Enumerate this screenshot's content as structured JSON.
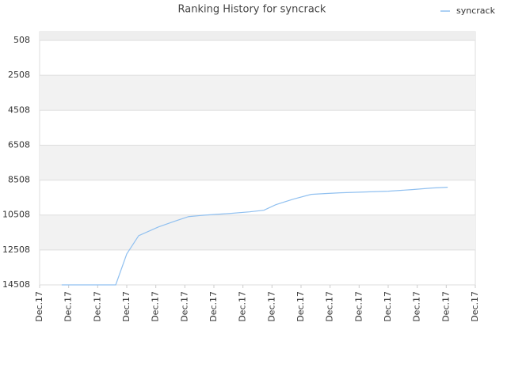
{
  "chart_data": {
    "type": "line",
    "title": "Ranking History for syncrack",
    "series": [
      {
        "name": "syncrack",
        "color": "#90c0f0",
        "x": [
          0.76,
          2.62,
          3.0,
          3.41,
          4.09,
          4.64,
          5.13,
          5.73,
          6.55,
          7.23,
          7.72,
          8.13,
          8.73,
          9.35,
          9.82,
          10.36,
          11.18,
          12.0,
          12.82,
          13.5,
          14.05
        ],
        "values": [
          14508,
          14508,
          12735,
          11690,
          11190,
          10871,
          10599,
          10508,
          10417,
          10326,
          10235,
          9917,
          9599,
          9326,
          9281,
          9235,
          9190,
          9144,
          9053,
          8962,
          8917
        ]
      }
    ],
    "xlim": [
      0,
      15
    ],
    "xticks": [
      {
        "value": 0,
        "label": "Dec.17"
      },
      {
        "value": 1,
        "label": "Dec.17"
      },
      {
        "value": 2,
        "label": "Dec.17"
      },
      {
        "value": 3,
        "label": "Dec.17"
      },
      {
        "value": 4,
        "label": "Dec.17"
      },
      {
        "value": 5,
        "label": "Dec.17"
      },
      {
        "value": 6,
        "label": "Dec.17"
      },
      {
        "value": 7,
        "label": "Dec.17"
      },
      {
        "value": 8,
        "label": "Dec.17"
      },
      {
        "value": 9,
        "label": "Dec.17"
      },
      {
        "value": 10,
        "label": "Dec.17"
      },
      {
        "value": 11,
        "label": "Dec.17"
      },
      {
        "value": 12,
        "label": "Dec.17"
      },
      {
        "value": 13,
        "label": "Dec.17"
      },
      {
        "value": 14,
        "label": "Dec.17"
      },
      {
        "value": 15,
        "label": "Dec.17"
      }
    ],
    "ylim": [
      14508,
      8
    ],
    "yticks": [
      508,
      2508,
      4508,
      6508,
      8508,
      10508,
      12508,
      14508
    ],
    "grid": true,
    "legend": "top-right"
  }
}
